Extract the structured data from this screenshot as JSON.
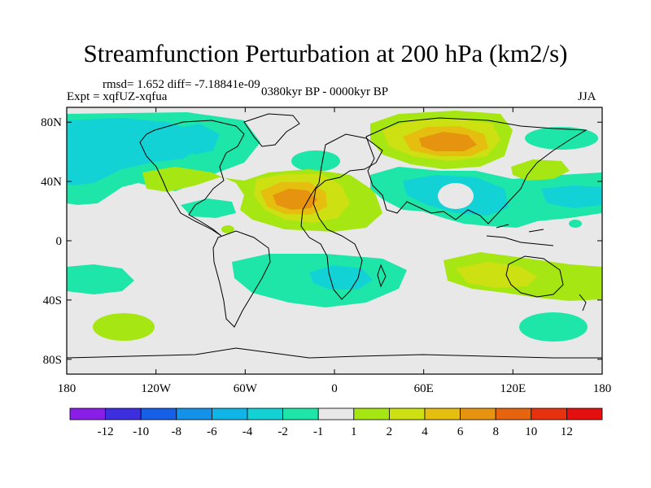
{
  "title": "Streamfunction Perturbation at 200 hPa (km2/s)",
  "stats": "rmsd= 1.652 diff= -7.18841e-09",
  "expt": "Expt = xqfUZ-xqfua",
  "period": "0380kyr BP - 0000kyr BP",
  "season": "JJA",
  "map": {
    "lon_ticks": [
      "180",
      "120W",
      "60W",
      "0",
      "60E",
      "120E",
      "180"
    ],
    "lat_ticks": [
      "80N",
      "40N",
      "0",
      "40S",
      "80S"
    ]
  },
  "colorbar": {
    "labels": [
      "-12",
      "-10",
      "-8",
      "-6",
      "-4",
      "-2",
      "-1",
      "1",
      "2",
      "4",
      "6",
      "8",
      "10",
      "12"
    ],
    "colors": [
      "#8a1ee8",
      "#3d2ee0",
      "#1560e6",
      "#1491e8",
      "#11b4e6",
      "#13d2d6",
      "#1ee6a8",
      "#e8e8e8",
      "#a6e612",
      "#cde012",
      "#e6be10",
      "#e6940f",
      "#e6640e",
      "#e6320e",
      "#e60f0f"
    ]
  },
  "field": [
    {
      "name": "n-pacific-negative",
      "value": "-2"
    },
    {
      "name": "n-pacific-core",
      "value": "-4"
    },
    {
      "name": "n-america-negative",
      "value": "-2"
    },
    {
      "name": "caribbean-negative",
      "value": "-2"
    },
    {
      "name": "n-atlantic-positive",
      "value": "2"
    },
    {
      "name": "subtropical-atlantic-core",
      "value": "8"
    },
    {
      "name": "n-africa-positive",
      "value": "4"
    },
    {
      "name": "siberia-positive",
      "value": "4"
    },
    {
      "name": "siberia-core",
      "value": "6"
    },
    {
      "name": "asia-negative",
      "value": "-2"
    },
    {
      "name": "asia-core",
      "value": "-4"
    },
    {
      "name": "japan-positive",
      "value": "2"
    },
    {
      "name": "s-atlantic-negative",
      "value": "-2"
    },
    {
      "name": "s-atlantic-core",
      "value": "-4"
    },
    {
      "name": "s-pacific-negative",
      "value": "-2"
    },
    {
      "name": "indian-ocean-positive",
      "value": "2"
    },
    {
      "name": "australia-positive",
      "value": "4"
    },
    {
      "name": "southern-ocean-positive",
      "value": "2"
    },
    {
      "name": "southern-ocean-negative",
      "value": "-2"
    }
  ]
}
